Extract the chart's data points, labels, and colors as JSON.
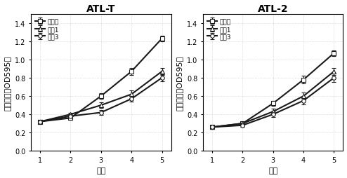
{
  "days": [
    1,
    2,
    3,
    4,
    5
  ],
  "atl_t": {
    "title": "ATL-T",
    "control": [
      0.32,
      0.36,
      0.6,
      0.87,
      1.23
    ],
    "sample1": [
      0.32,
      0.4,
      0.5,
      0.62,
      0.87
    ],
    "sample3": [
      0.32,
      0.38,
      0.42,
      0.57,
      0.8
    ],
    "control_err": [
      0.02,
      0.02,
      0.03,
      0.04,
      0.03
    ],
    "sample1_err": [
      0.02,
      0.02,
      0.03,
      0.04,
      0.04
    ],
    "sample3_err": [
      0.02,
      0.02,
      0.03,
      0.03,
      0.04
    ]
  },
  "atl_2": {
    "title": "ATL-2",
    "control": [
      0.26,
      0.3,
      0.52,
      0.78,
      1.07
    ],
    "sample1": [
      0.26,
      0.3,
      0.43,
      0.6,
      0.87
    ],
    "sample3": [
      0.26,
      0.28,
      0.4,
      0.55,
      0.8
    ],
    "control_err": [
      0.02,
      0.02,
      0.03,
      0.04,
      0.03
    ],
    "sample1_err": [
      0.02,
      0.02,
      0.03,
      0.04,
      0.04
    ],
    "sample3_err": [
      0.02,
      0.02,
      0.03,
      0.04,
      0.05
    ]
  },
  "legend_labels": [
    "对照组",
    "实例1",
    "实例3"
  ],
  "xlabel": "天数",
  "ylabel": "细胞活力（OD595）",
  "ylim": [
    0,
    1.5
  ],
  "yticks": [
    0,
    0.2,
    0.4,
    0.6,
    0.8,
    1.0,
    1.2,
    1.4
  ],
  "line_color": "#1a1a1a",
  "markers": [
    "s",
    "^",
    "o"
  ],
  "marker_facecolors": [
    "white",
    "white",
    "white"
  ],
  "linewidth": 1.5,
  "markersize": 4,
  "font_size": 8,
  "title_fontsize": 10
}
